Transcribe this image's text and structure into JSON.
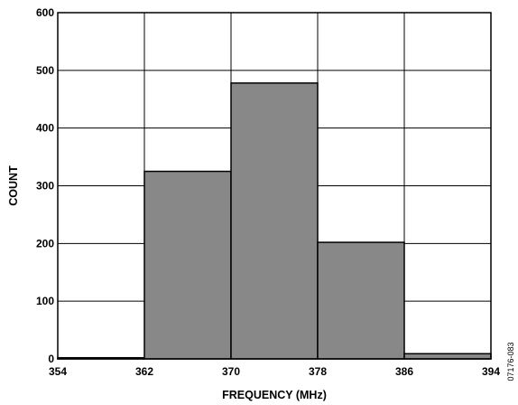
{
  "chart_data": {
    "type": "bar",
    "subtype": "histogram",
    "bin_edges": [
      354,
      362,
      370,
      378,
      386,
      394
    ],
    "values": [
      2,
      325,
      478,
      202,
      9
    ],
    "xlabel": "FREQUENCY (MHz)",
    "ylabel": "COUNT",
    "xlim": [
      354,
      394
    ],
    "ylim": [
      0,
      600
    ],
    "xticks": [
      354,
      362,
      370,
      378,
      386,
      394
    ],
    "yticks": [
      0,
      100,
      200,
      300,
      400,
      500,
      600
    ],
    "grid": true,
    "bar_color": "#888888",
    "edge_color": "#000000"
  },
  "figure_id": "07176-083"
}
